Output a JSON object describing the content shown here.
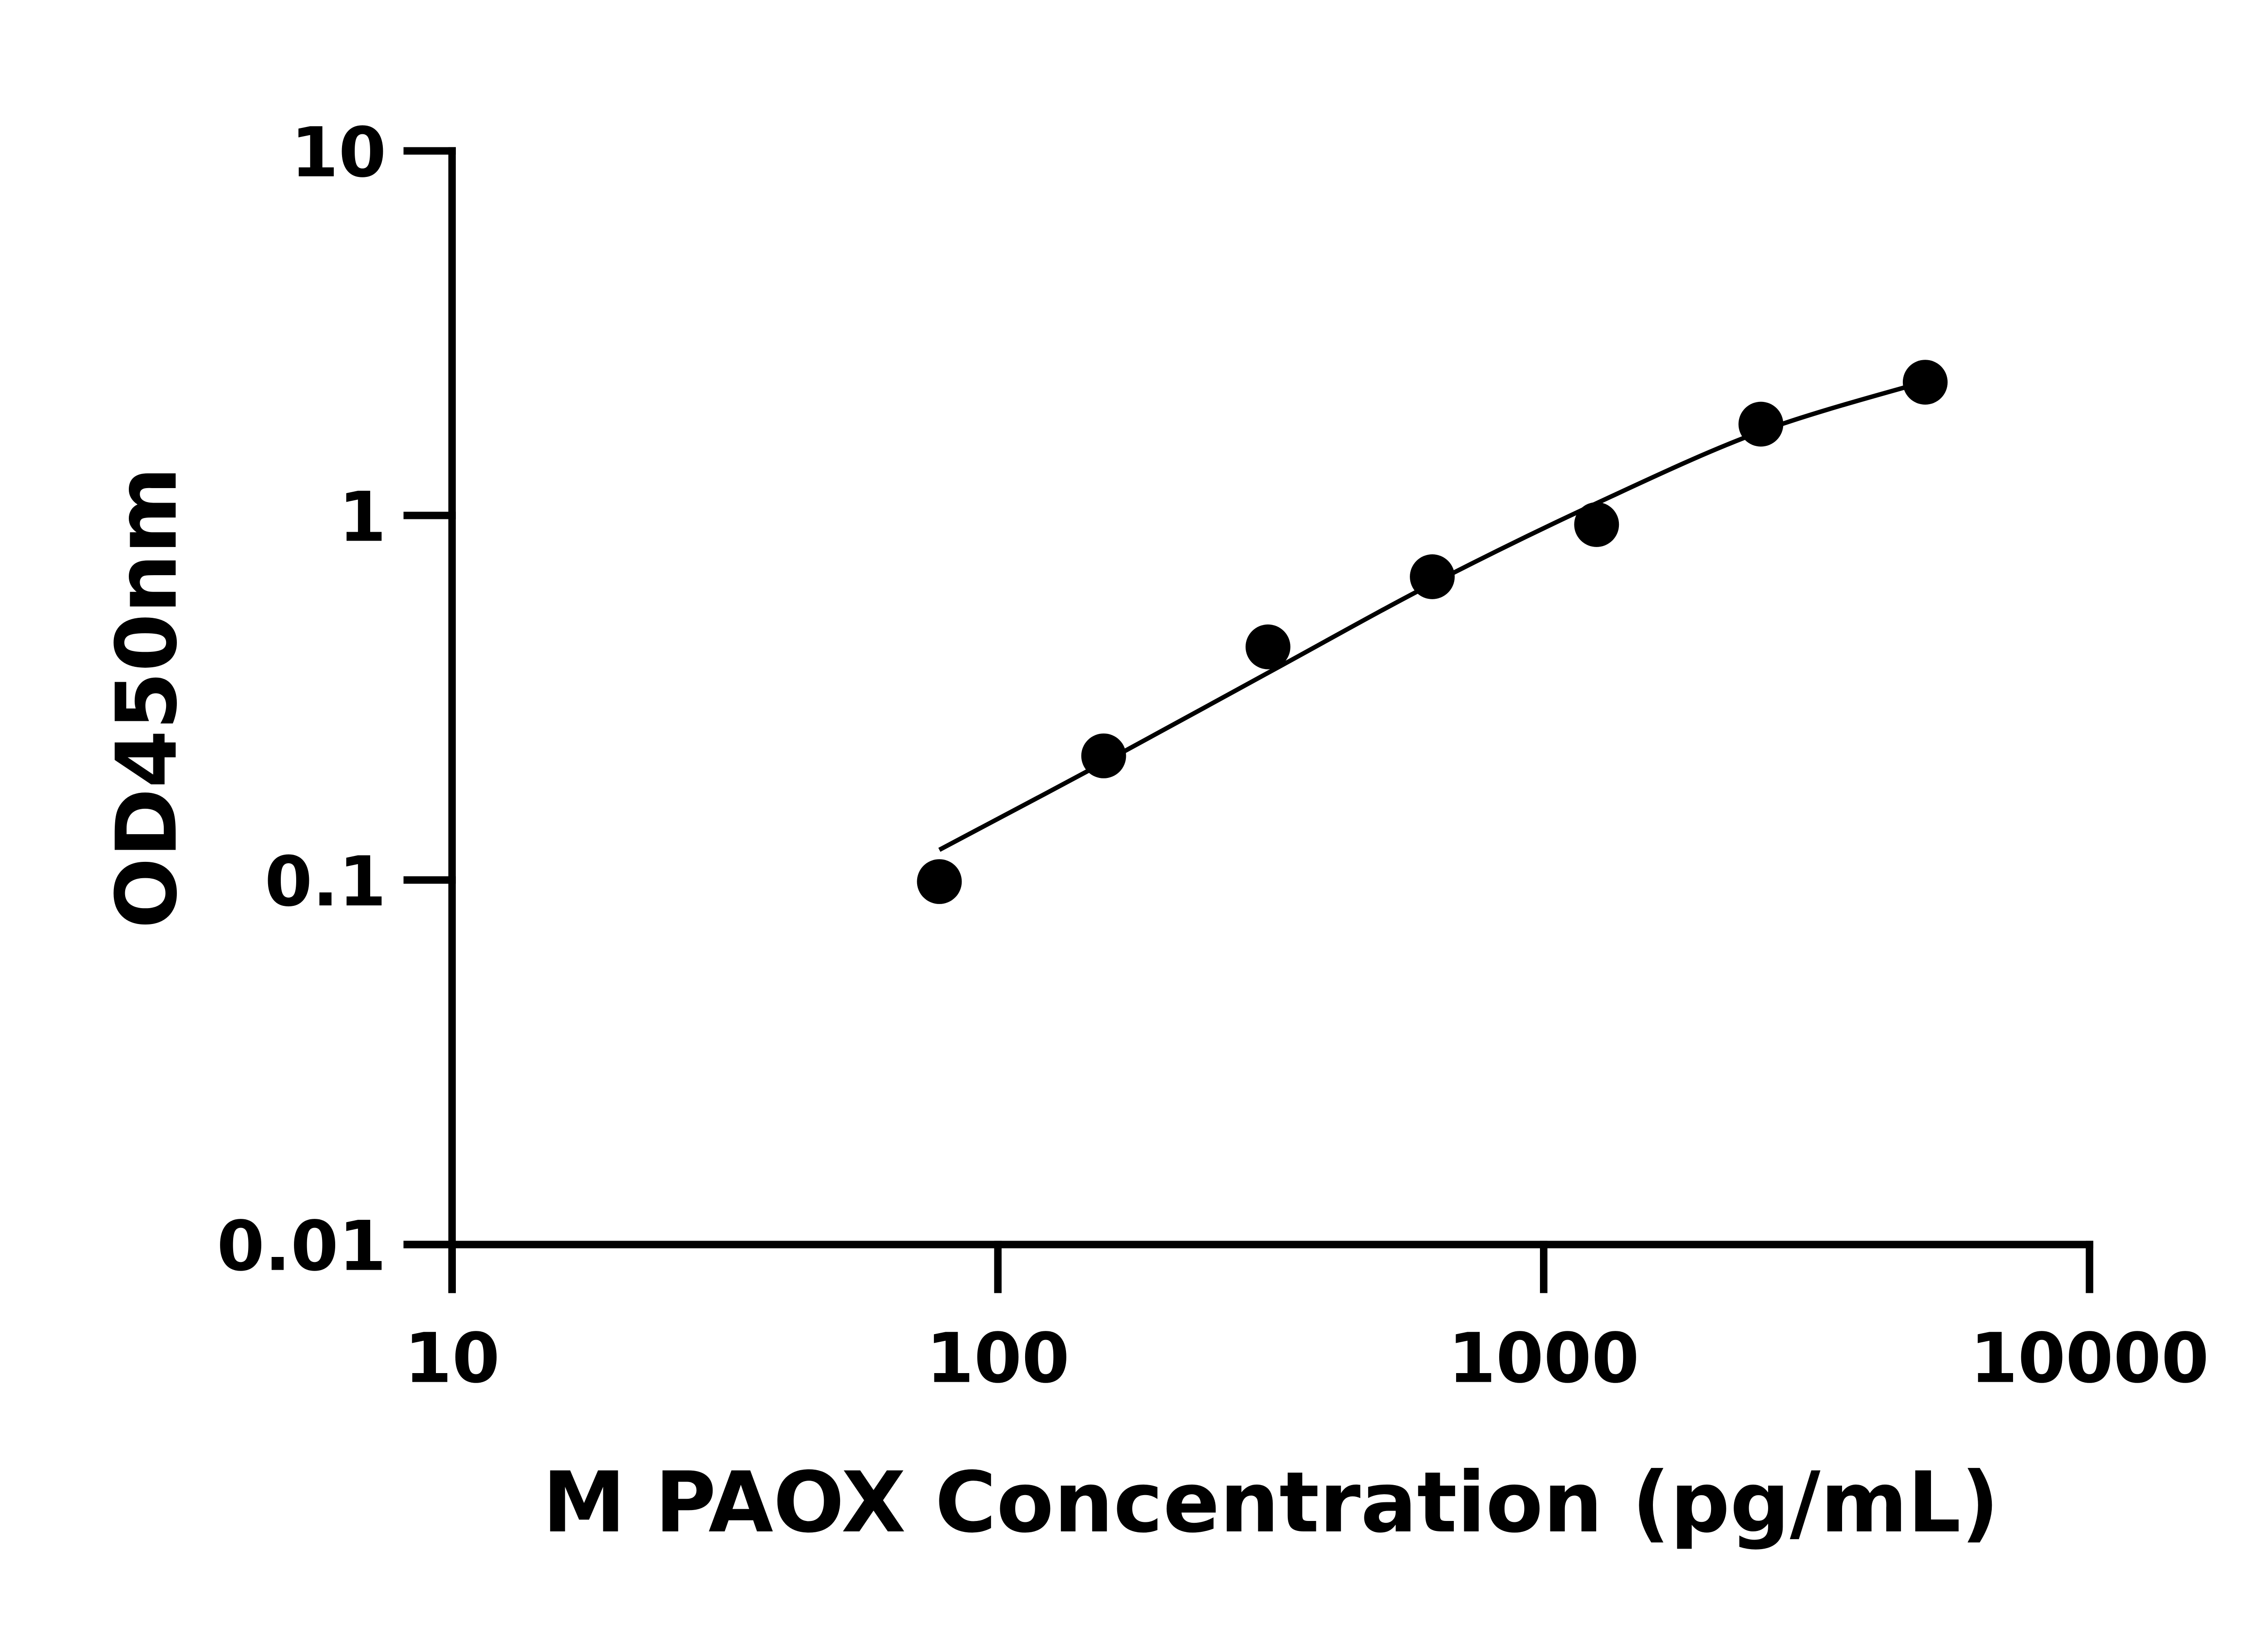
{
  "chart_data": {
    "type": "scatter",
    "title": "",
    "xlabel": "M PAOX Concentration (pg/mL)",
    "ylabel": "OD450nm",
    "x_scale": "log",
    "y_scale": "log",
    "xlim": [
      10,
      10000
    ],
    "ylim": [
      0.01,
      10
    ],
    "x_ticks": [
      10,
      100,
      1000,
      10000
    ],
    "x_tick_labels": [
      "10",
      "100",
      "1000",
      "10000"
    ],
    "y_ticks": [
      0.01,
      0.1,
      1,
      10
    ],
    "y_tick_labels": [
      "0.01",
      "0.1",
      "1",
      "10"
    ],
    "grid": false,
    "legend": "none",
    "marker_color": "#000000",
    "points": {
      "x": [
        78.125,
        156.25,
        312.5,
        625,
        1250,
        2500,
        5000
      ],
      "y": [
        0.099,
        0.219,
        0.436,
        0.679,
        0.944,
        1.78,
        2.32
      ]
    },
    "fit_curve": {
      "x": [
        78.125,
        156.25,
        312.5,
        625,
        1250,
        2500,
        5000
      ],
      "y": [
        0.121,
        0.21,
        0.37,
        0.65,
        1.08,
        1.7,
        2.33
      ]
    }
  }
}
